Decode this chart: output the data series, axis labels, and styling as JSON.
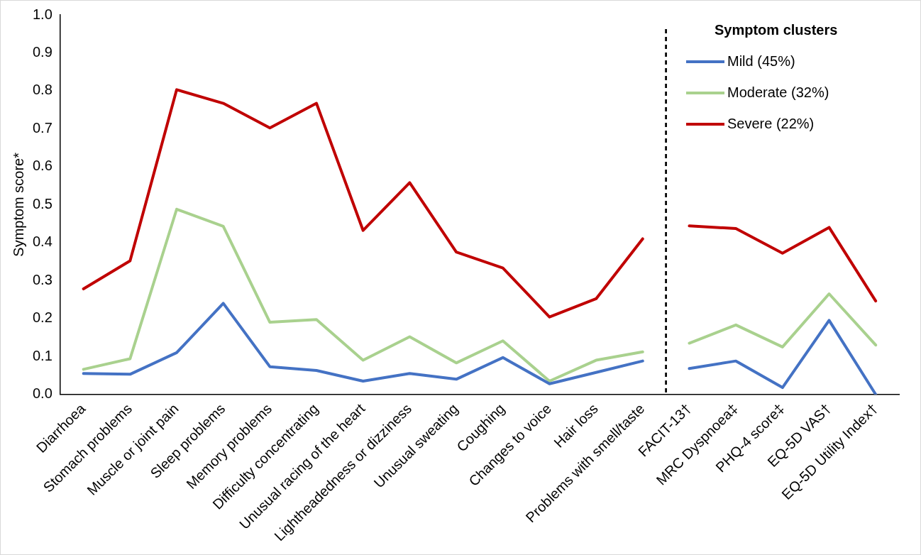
{
  "chart_data": {
    "type": "line",
    "ylabel": "Symptom score*",
    "legend_title": "Symptom clusters",
    "legend": "top right",
    "grid": false,
    "marker": "none",
    "line_style": "solid",
    "categories": [
      "Diarrhoea",
      "Stomach problems",
      "Muscle or joint pain",
      "Sleep problems",
      "Memory problems",
      "Difficulty concentrating",
      "Unusual racing of the heart",
      "Lightheadedness or dizziness",
      "Unusual sweating",
      "Coughing",
      "Changes to voice",
      "Hair loss",
      "Problems with smell/taste",
      "FACIT-13†",
      "MRC Dyspnoea‡",
      "PHQ-4 score‡",
      "EQ-5D VAS†",
      "EQ-5D Utility Index†"
    ],
    "ylim": [
      0,
      1
    ],
    "yticks": [
      {
        "value": 0,
        "label": "0.0"
      },
      {
        "value": 0.1,
        "label": "0.1"
      },
      {
        "value": 0.2,
        "label": "0.2"
      },
      {
        "value": 0.3,
        "label": "0.3"
      },
      {
        "value": 0.4,
        "label": "0.4"
      },
      {
        "value": 0.5,
        "label": "0.5"
      },
      {
        "value": 0.6,
        "label": "0.6"
      },
      {
        "value": 0.7,
        "label": "0.7"
      },
      {
        "value": 0.8,
        "label": "0.8"
      },
      {
        "value": 0.9,
        "label": "0.9"
      },
      {
        "value": 1,
        "label": "1.0"
      }
    ],
    "series": [
      {
        "name": "Mild (45%)",
        "color": "#4472c4",
        "values": [
          0.055,
          0.053,
          0.11,
          0.24,
          0.073,
          0.063,
          0.035,
          0.055,
          0.04,
          0.097,
          0.028,
          0.058,
          0.088,
          null,
          null,
          null,
          null,
          null
        ]
      },
      {
        "name": "Moderate (32%)",
        "color": "#a9d18e",
        "values": [
          0.066,
          0.094,
          0.488,
          0.443,
          0.19,
          0.197,
          0.09,
          0.152,
          0.083,
          0.141,
          0.035,
          0.09,
          0.112,
          null,
          null,
          null,
          null,
          null
        ]
      },
      {
        "name": "Severe (22%)",
        "color": "#c00000",
        "values": [
          0.278,
          0.352,
          0.803,
          0.767,
          0.702,
          0.767,
          0.432,
          0.558,
          0.375,
          0.333,
          0.204,
          0.252,
          0.41,
          null,
          null,
          null,
          null,
          null
        ]
      },
      {
        "color": "#4472c4",
        "values": [
          null,
          null,
          null,
          null,
          null,
          null,
          null,
          null,
          null,
          null,
          null,
          null,
          null,
          0.068,
          0.088,
          0.018,
          0.195,
          0
        ]
      },
      {
        "color": "#a9d18e",
        "values": [
          null,
          null,
          null,
          null,
          null,
          null,
          null,
          null,
          null,
          null,
          null,
          null,
          null,
          0.135,
          0.183,
          0.125,
          0.265,
          0.13
        ]
      },
      {
        "color": "#c00000",
        "values": [
          null,
          null,
          null,
          null,
          null,
          null,
          null,
          null,
          null,
          null,
          null,
          null,
          null,
          0.444,
          0.437,
          0.372,
          0.44,
          0.246
        ]
      }
    ]
  }
}
